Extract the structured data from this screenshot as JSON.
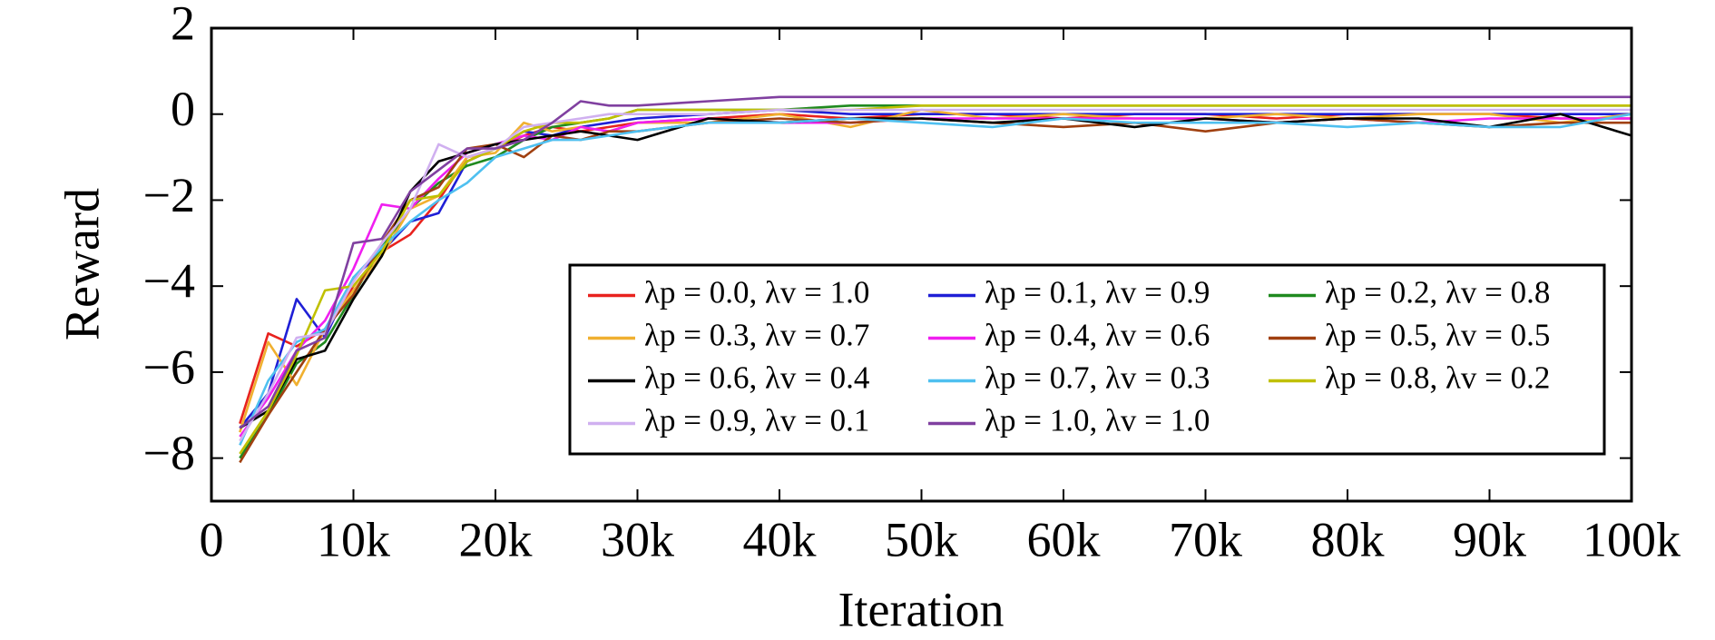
{
  "chart_data": {
    "type": "line",
    "x_label": "Iteration",
    "y_label": "Reward",
    "x": [
      2000,
      4000,
      6000,
      8000,
      10000,
      12000,
      14000,
      16000,
      18000,
      20000,
      22000,
      24000,
      26000,
      28000,
      30000,
      35000,
      40000,
      45000,
      50000,
      55000,
      60000,
      65000,
      70000,
      75000,
      80000,
      85000,
      90000,
      95000,
      100000
    ],
    "xlim": [
      0,
      100000
    ],
    "xticks": [
      0,
      {
        "value": 10000,
        "label": "10k"
      },
      {
        "value": 20000,
        "label": "20k"
      },
      {
        "value": 30000,
        "label": "30k"
      },
      {
        "value": 40000,
        "label": "40k"
      },
      {
        "value": 50000,
        "label": "50k"
      },
      {
        "value": 60000,
        "label": "60k"
      },
      {
        "value": 70000,
        "label": "70k"
      },
      {
        "value": 80000,
        "label": "80k"
      },
      {
        "value": 90000,
        "label": "90k"
      },
      {
        "value": 100000,
        "label": "100k"
      }
    ],
    "ylim": [
      -9,
      2
    ],
    "yticks": [
      {
        "value": -8,
        "label": "−8"
      },
      {
        "value": -6,
        "label": "−6"
      },
      {
        "value": -4,
        "label": "−4"
      },
      {
        "value": -2,
        "label": "−2"
      },
      0,
      2
    ],
    "legend": "lower right",
    "series": [
      {
        "name": "λp = 0.0, λv = 1.0",
        "color": "#e8221e",
        "values": [
          -7.2,
          -5.1,
          -5.4,
          -5.0,
          -4.0,
          -3.2,
          -2.8,
          -2.0,
          -1.0,
          -0.8,
          -0.5,
          -0.3,
          -0.4,
          -0.3,
          -0.2,
          -0.1,
          0.0,
          -0.1,
          0.0,
          0.0,
          -0.1,
          0.0,
          0.0,
          -0.1,
          0.0,
          0.0,
          0.0,
          -0.1,
          -0.1
        ]
      },
      {
        "name": "λp = 0.1, λv = 0.9",
        "color": "#1f1fd6",
        "values": [
          -7.3,
          -6.5,
          -4.3,
          -5.2,
          -3.8,
          -3.2,
          -2.5,
          -2.3,
          -1.1,
          -0.8,
          -0.4,
          -0.5,
          -0.3,
          -0.2,
          -0.1,
          0.0,
          0.1,
          0.0,
          0.0,
          0.0,
          0.0,
          0.0,
          0.0,
          0.0,
          0.0,
          0.0,
          0.0,
          0.0,
          0.0
        ]
      },
      {
        "name": "λp = 0.2, λv = 0.8",
        "color": "#1f8a1f",
        "values": [
          -8.0,
          -7.0,
          -5.8,
          -5.3,
          -4.2,
          -3.1,
          -2.2,
          -1.6,
          -1.2,
          -1.0,
          -0.6,
          -0.3,
          -0.2,
          -0.1,
          0.1,
          0.1,
          0.1,
          0.2,
          0.2,
          0.2,
          0.2,
          0.2,
          0.2,
          0.2,
          0.2,
          0.2,
          0.2,
          0.2,
          0.2
        ]
      },
      {
        "name": "λp = 0.3, λv = 0.7",
        "color": "#f0b030",
        "values": [
          -7.4,
          -5.3,
          -6.3,
          -5.0,
          -4.1,
          -3.3,
          -2.2,
          -1.9,
          -1.0,
          -0.9,
          -0.2,
          -0.4,
          -0.3,
          -0.4,
          -0.2,
          -0.2,
          0.0,
          -0.3,
          0.1,
          -0.1,
          0.0,
          -0.1,
          -0.1,
          0.0,
          -0.1,
          0.0,
          0.0,
          -0.2,
          0.0
        ]
      },
      {
        "name": "λp = 0.4, λv = 0.6",
        "color": "#f01ff0",
        "values": [
          -7.5,
          -6.6,
          -5.5,
          -4.8,
          -3.6,
          -2.1,
          -2.2,
          -1.5,
          -0.9,
          -0.7,
          -0.5,
          -0.6,
          -0.3,
          -0.4,
          -0.2,
          -0.1,
          -0.2,
          -0.2,
          -0.1,
          -0.1,
          -0.1,
          -0.1,
          -0.1,
          -0.2,
          -0.1,
          -0.2,
          -0.1,
          -0.1,
          -0.1
        ]
      },
      {
        "name": "λp = 0.5, λv = 0.5",
        "color": "#a04010",
        "values": [
          -8.1,
          -7.0,
          -6.0,
          -5.0,
          -4.2,
          -3.0,
          -2.0,
          -1.7,
          -0.8,
          -0.7,
          -1.0,
          -0.5,
          -0.6,
          -0.4,
          -0.4,
          -0.2,
          -0.1,
          -0.2,
          -0.1,
          -0.2,
          -0.3,
          -0.2,
          -0.4,
          -0.2,
          -0.1,
          -0.2,
          -0.3,
          -0.2,
          -0.2
        ]
      },
      {
        "name": "λp = 0.6, λv = 0.4",
        "color": "#000000",
        "values": [
          -7.3,
          -6.9,
          -5.7,
          -5.5,
          -4.3,
          -3.3,
          -1.8,
          -1.1,
          -0.9,
          -0.7,
          -0.6,
          -0.5,
          -0.4,
          -0.5,
          -0.6,
          -0.1,
          -0.2,
          -0.1,
          -0.1,
          -0.2,
          -0.1,
          -0.3,
          -0.1,
          -0.2,
          -0.1,
          -0.1,
          -0.3,
          0.0,
          -0.5
        ]
      },
      {
        "name": "λp = 0.7, λv = 0.3",
        "color": "#4fc0f0",
        "values": [
          -7.7,
          -6.2,
          -5.3,
          -5.0,
          -3.8,
          -3.1,
          -2.5,
          -2.0,
          -1.6,
          -1.0,
          -0.8,
          -0.6,
          -0.6,
          -0.5,
          -0.4,
          -0.2,
          -0.2,
          -0.1,
          -0.2,
          -0.3,
          -0.1,
          -0.2,
          -0.2,
          -0.2,
          -0.3,
          -0.2,
          -0.3,
          -0.3,
          0.0
        ]
      },
      {
        "name": "λp = 0.8, λv = 0.2",
        "color": "#c0c000",
        "values": [
          -7.9,
          -6.9,
          -5.6,
          -4.1,
          -4.0,
          -3.2,
          -2.0,
          -1.9,
          -1.1,
          -0.8,
          -0.4,
          -0.2,
          -0.2,
          -0.1,
          0.1,
          0.1,
          0.1,
          0.1,
          0.2,
          0.2,
          0.2,
          0.2,
          0.2,
          0.2,
          0.2,
          0.2,
          0.2,
          0.2,
          0.2
        ]
      },
      {
        "name": "λp = 0.9, λv = 0.1",
        "color": "#d0b0f0",
        "values": [
          -7.6,
          -6.5,
          -5.2,
          -5.1,
          -3.9,
          -3.0,
          -2.2,
          -0.7,
          -1.0,
          -0.8,
          -0.3,
          -0.2,
          -0.1,
          0.0,
          0.0,
          0.0,
          0.1,
          0.1,
          0.1,
          0.1,
          0.1,
          0.1,
          0.1,
          0.1,
          0.1,
          0.1,
          0.1,
          0.1,
          0.1
        ]
      },
      {
        "name": "λp = 1.0, λv = 1.0",
        "color": "#8040a0",
        "values": [
          -7.3,
          -6.8,
          -5.5,
          -5.2,
          -3.0,
          -2.9,
          -1.8,
          -1.3,
          -0.8,
          -0.8,
          -0.6,
          -0.2,
          0.3,
          0.2,
          0.2,
          0.3,
          0.4,
          0.4,
          0.4,
          0.4,
          0.4,
          0.4,
          0.4,
          0.4,
          0.4,
          0.4,
          0.4,
          0.4,
          0.4
        ]
      }
    ]
  }
}
